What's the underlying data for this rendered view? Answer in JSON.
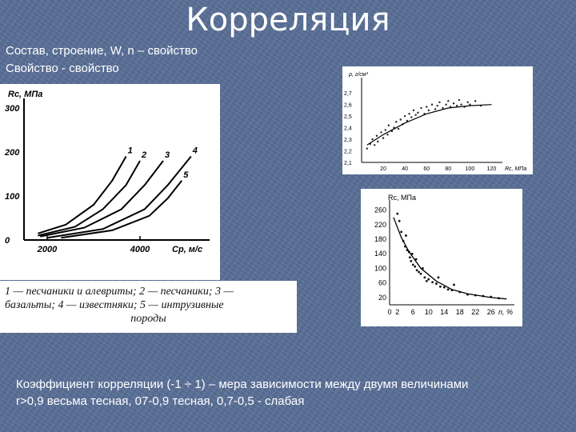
{
  "slide": {
    "title": "Корреляция",
    "line1": "Состав, строение, W, n – свойство",
    "line2": "Свойство - свойство",
    "footer_line1": "Коэффициент корреляции (-1 ÷ 1) – мера зависимости между двумя величинами",
    "footer_line2": "r>0,9 весьма тесная, 07-0,9 тесная, 0,7-0,5 - слабая"
  },
  "chart_data": [
    {
      "type": "line",
      "ylabel": "Rc, МПа",
      "xlabel": "Cp, м/с",
      "y_ticks": [
        "300",
        "200",
        "100",
        "0"
      ],
      "x_ticks": [
        "2000",
        "4000"
      ],
      "ylim": [
        0,
        300
      ],
      "xlim": [
        1500,
        5500
      ],
      "series": [
        {
          "name": "1",
          "x": [
            1800,
            2400,
            3000,
            3400,
            3700
          ],
          "y": [
            15,
            35,
            80,
            135,
            190
          ]
        },
        {
          "name": "2",
          "x": [
            1800,
            2600,
            3200,
            3700,
            4000
          ],
          "y": [
            10,
            30,
            70,
            125,
            180
          ]
        },
        {
          "name": "3",
          "x": [
            1850,
            2800,
            3600,
            4100,
            4500
          ],
          "y": [
            8,
            28,
            70,
            125,
            180
          ]
        },
        {
          "name": "4",
          "x": [
            2000,
            3200,
            4100,
            4600,
            5100
          ],
          "y": [
            5,
            25,
            70,
            125,
            190
          ]
        },
        {
          "name": "5",
          "x": [
            2300,
            3400,
            4200,
            4600,
            4900
          ],
          "y": [
            5,
            22,
            55,
            95,
            135
          ]
        }
      ],
      "caption_line1": "1 — песчаники и алевриты; 2 — песчаники; 3 —",
      "caption_line2": "базальты; 4 — известняки; 5 — интрузивные",
      "caption_line3": "породы"
    },
    {
      "type": "scatter",
      "ylabel": "ρ, г/см³",
      "xlabel": "Rc, МПа",
      "y_ticks": [
        "2,7",
        "2,6",
        "2,5",
        "2,4",
        "2,3",
        "2,2",
        "2,1"
      ],
      "x_ticks": [
        "20",
        "40",
        "60",
        "80",
        "100",
        "120"
      ],
      "ylim": [
        2.1,
        2.75
      ],
      "xlim": [
        0,
        130
      ],
      "points": [
        [
          5,
          2.22
        ],
        [
          8,
          2.26
        ],
        [
          10,
          2.3
        ],
        [
          12,
          2.25
        ],
        [
          14,
          2.33
        ],
        [
          15,
          2.28
        ],
        [
          18,
          2.36
        ],
        [
          20,
          2.31
        ],
        [
          22,
          2.38
        ],
        [
          24,
          2.34
        ],
        [
          25,
          2.42
        ],
        [
          28,
          2.37
        ],
        [
          30,
          2.4
        ],
        [
          32,
          2.45
        ],
        [
          34,
          2.39
        ],
        [
          36,
          2.47
        ],
        [
          38,
          2.43
        ],
        [
          40,
          2.5
        ],
        [
          42,
          2.46
        ],
        [
          44,
          2.52
        ],
        [
          46,
          2.49
        ],
        [
          48,
          2.55
        ],
        [
          50,
          2.51
        ],
        [
          52,
          2.53
        ],
        [
          55,
          2.57
        ],
        [
          58,
          2.52
        ],
        [
          60,
          2.58
        ],
        [
          62,
          2.55
        ],
        [
          65,
          2.6
        ],
        [
          68,
          2.56
        ],
        [
          70,
          2.59
        ],
        [
          72,
          2.62
        ],
        [
          75,
          2.57
        ],
        [
          78,
          2.6
        ],
        [
          80,
          2.63
        ],
        [
          82,
          2.58
        ],
        [
          85,
          2.61
        ],
        [
          88,
          2.59
        ],
        [
          90,
          2.64
        ],
        [
          92,
          2.6
        ],
        [
          95,
          2.58
        ],
        [
          98,
          2.62
        ],
        [
          100,
          2.6
        ],
        [
          105,
          2.63
        ],
        [
          110,
          2.59
        ]
      ],
      "curve": [
        [
          5,
          2.25
        ],
        [
          20,
          2.34
        ],
        [
          40,
          2.44
        ],
        [
          60,
          2.52
        ],
        [
          80,
          2.57
        ],
        [
          100,
          2.59
        ],
        [
          120,
          2.6
        ]
      ]
    },
    {
      "type": "scatter",
      "ylabel": "Rс, МПа",
      "xlabel": "n, %",
      "y_ticks": [
        "260",
        "220",
        "180",
        "140",
        "100",
        "60",
        "20"
      ],
      "x_ticks": [
        "0",
        "2",
        "6",
        "10",
        "14",
        "18",
        "22",
        "26"
      ],
      "ylim": [
        0,
        270
      ],
      "xlim": [
        0,
        32
      ],
      "points": [
        [
          2,
          250
        ],
        [
          2.5,
          230
        ],
        [
          3,
          200
        ],
        [
          3.5,
          175
        ],
        [
          4,
          160
        ],
        [
          4.5,
          150
        ],
        [
          5,
          145
        ],
        [
          5.2,
          130
        ],
        [
          5.5,
          120
        ],
        [
          6,
          110
        ],
        [
          6.5,
          105
        ],
        [
          7,
          95
        ],
        [
          7.5,
          90
        ],
        [
          8,
          85
        ],
        [
          9,
          75
        ],
        [
          10,
          70
        ],
        [
          11,
          62
        ],
        [
          12,
          58
        ],
        [
          13,
          50
        ],
        [
          14,
          48
        ],
        [
          15,
          42
        ],
        [
          16,
          40
        ],
        [
          18,
          35
        ],
        [
          20,
          28
        ],
        [
          22,
          26
        ],
        [
          24,
          24
        ],
        [
          26,
          22
        ],
        [
          28,
          18
        ],
        [
          4.2,
          190
        ],
        [
          5.8,
          140
        ],
        [
          6.8,
          125
        ],
        [
          8.5,
          100
        ],
        [
          9.5,
          65
        ],
        [
          12.5,
          75
        ],
        [
          16.5,
          55
        ]
      ],
      "curve": [
        [
          1,
          240
        ],
        [
          3,
          185
        ],
        [
          5,
          145
        ],
        [
          8,
          100
        ],
        [
          12,
          65
        ],
        [
          16,
          42
        ],
        [
          20,
          30
        ],
        [
          26,
          20
        ],
        [
          30,
          16
        ]
      ]
    }
  ]
}
